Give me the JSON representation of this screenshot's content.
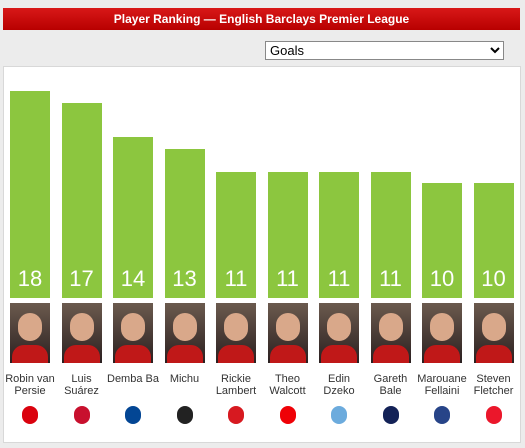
{
  "chart_data": {
    "type": "bar",
    "title": "Player Ranking — English Barclays Premier League",
    "selector": "Goals",
    "categories": [
      "Robin van Persie",
      "Luis Suárez",
      "Demba Ba",
      "Michu",
      "Rickie Lambert",
      "Theo Walcott",
      "Edin Dzeko",
      "Gareth Bale",
      "Marouane Fellaini",
      "Steven Fletcher"
    ],
    "values": [
      18,
      17,
      14,
      13,
      11,
      11,
      11,
      11,
      10,
      10
    ],
    "color": "#8cc63f"
  }
}
